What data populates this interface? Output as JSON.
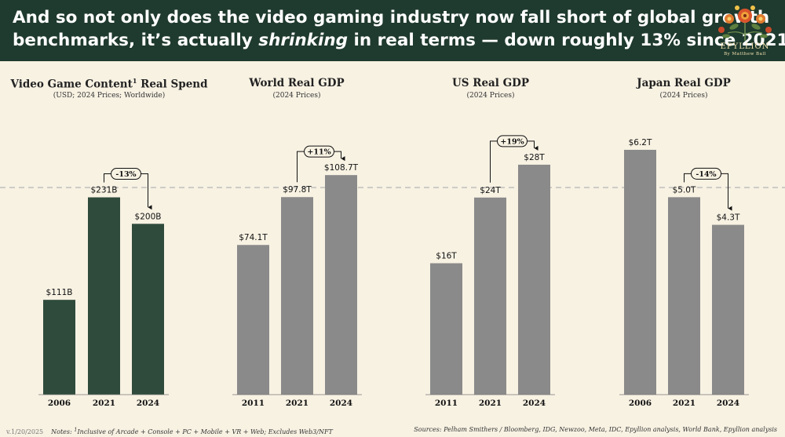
{
  "headline": {
    "line1": "And so not only does the video gaming industry now fall short of global growth",
    "line2_a": "benchmarks, it’s actually ",
    "line2_em": "shrinking",
    "line2_b": " in real terms — down roughly 13% since 2021"
  },
  "logo": {
    "name": "EPYLLION",
    "byline": "By Matthew Ball"
  },
  "colors": {
    "header_bg": "#1f3a2e",
    "games_bar": "#2f4b3c",
    "gdp_bar": "#8a8a8a",
    "background": "#f8f2e3",
    "dashed_line": "#b5b5b5"
  },
  "chart_data": [
    {
      "type": "bar",
      "title": "Video Game Content",
      "title_sup": "1",
      "title_suffix": " Real Spend",
      "subtitle": "(USD; 2024 Prices; Worldwide)",
      "categories": [
        "2006",
        "2021",
        "2024"
      ],
      "values": [
        111,
        231,
        200
      ],
      "labels": [
        "$111B",
        "$231B",
        "$200B"
      ],
      "unit": "B USD",
      "ylim": [
        0,
        350
      ],
      "bar_color": "#2f4b3c",
      "annotation": {
        "text": "-13%",
        "from": 1,
        "to": 2
      }
    },
    {
      "type": "bar",
      "title": "World Real GDP",
      "subtitle": "(2024 Prices)",
      "categories": [
        "2011",
        "2021",
        "2024"
      ],
      "values": [
        74.1,
        97.8,
        108.7
      ],
      "labels": [
        "$74.1T",
        "$97.8T",
        "$108.7T"
      ],
      "unit": "T USD",
      "ylim": [
        0,
        148
      ],
      "bar_color": "#8a8a8a",
      "annotation": {
        "text": "+11%",
        "from": 1,
        "to": 2
      }
    },
    {
      "type": "bar",
      "title": "US Real GDP",
      "subtitle": "(2024 Prices)",
      "categories": [
        "2011",
        "2021",
        "2024"
      ],
      "values": [
        16,
        24,
        28
      ],
      "labels": [
        "$16T",
        "$24T",
        "$28T"
      ],
      "unit": "T USD",
      "ylim": [
        0,
        36.4
      ],
      "bar_color": "#8a8a8a",
      "annotation": {
        "text": "+19%",
        "from": 1,
        "to": 2
      }
    },
    {
      "type": "bar",
      "title": "Japan Real GDP",
      "subtitle": "(2024 Prices)",
      "categories": [
        "2006",
        "2021",
        "2024"
      ],
      "values": [
        6.2,
        5.0,
        4.3
      ],
      "labels": [
        "$6.2T",
        "$5.0T",
        "$4.3T"
      ],
      "unit": "T USD",
      "ylim": [
        0,
        7.57
      ],
      "bar_color": "#8a8a8a",
      "annotation": {
        "text": "-14%",
        "from": 1,
        "to": 2
      }
    }
  ],
  "footer": {
    "version": "v.1/20/2025",
    "notes_label": "Notes: ",
    "notes_sup": "1",
    "notes_text": "Inclusive of Arcade + Console + PC + Mobile + VR + Web; Excludes Web3/NFT",
    "sources": "Sources: Pelham Smithers / Bloomberg, IDG, Newzoo, Meta, IDC, Epyllion analysis, World Bank, Epyllion analysis"
  }
}
